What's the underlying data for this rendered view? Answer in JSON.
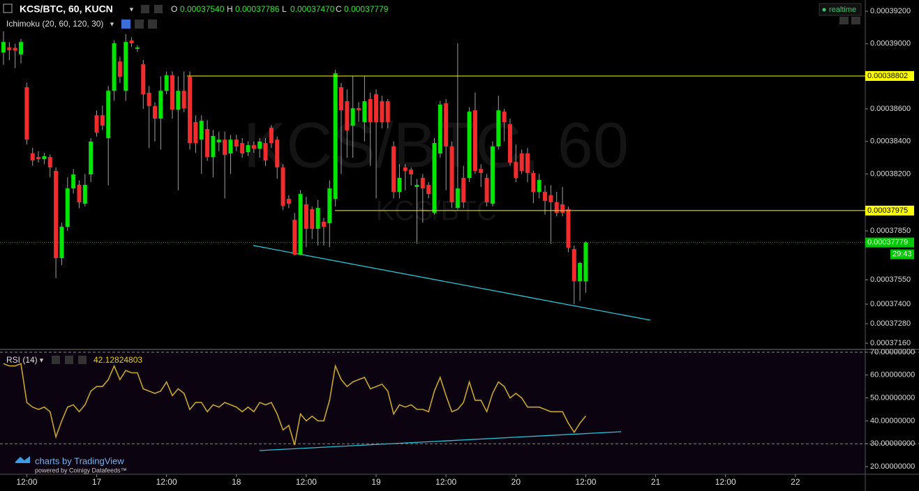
{
  "header": {
    "symbol": "KCS/BTC, 60, KUCN",
    "ohlc": [
      {
        "key": "O",
        "value": "0.00037540"
      },
      {
        "key": "H",
        "value": "0.00037786"
      },
      {
        "key": "L",
        "value": "0.00037470"
      },
      {
        "key": "C",
        "value": "0.00037779"
      }
    ],
    "indicator": "Ichimoku (20, 60, 120, 30)",
    "realtime": "realtime"
  },
  "watermark": {
    "title": "KCS/BTC, 60",
    "subtitle": "KCS/BTC"
  },
  "branding": {
    "title": "charts by TradingView",
    "subtitle": "powered by Coinigy Datafeeds™"
  },
  "chart_data": [
    {
      "type": "candlestick",
      "up_color": "#00e600",
      "down_color": "#f22c2c",
      "wick_color": "#a0a0a0",
      "open": [
        0.00038947,
        0.00038977,
        0.00038975,
        0.00038934,
        0.00038733,
        0.00038326,
        0.00038304,
        0.00038291,
        0.00038304,
        0.00038219,
        0.00037683,
        0.00037876,
        0.00038111,
        0.00038133,
        0.00038017,
        0.00038197,
        0.00038561,
        0.00038561,
        0.0003842,
        0.00038711,
        0.00038891,
        0.00038711,
        0.0003902,
        0.00038969,
        0.00038874,
        0.00038699,
        0.00038617,
        0.0003854,
        0.00038711,
        0.00038806,
        0.00038596,
        0.00038711,
        0.00038797,
        0.00038519,
        0.00038411,
        0.00038476,
        0.00038304,
        0.00038394,
        0.00038411,
        0.00038326,
        0.00038411,
        0.0003839,
        0.00038334,
        0.00038377,
        0.00038356,
        0.0003839,
        0.00038484,
        0.00038411,
        0.0003824,
        0.00038047,
        0.00037918,
        0.00037704,
        0.00038013,
        0.00037983,
        0.00037863,
        0.00037906,
        0.00037897,
        0.00038047,
        0.00038733,
        0.00038647,
        0.00038497,
        0.00038604,
        0.00038519,
        0.0003866,
        0.0003869,
        0.00038647,
        0.00038647,
        0.00038369,
        0.0003809,
        0.0003824,
        0.00038227,
        0.0003812,
        0.00038176,
        0.00038133,
        0.00037961,
        0.00038326,
        0.00038634,
        0.00038369,
        0.00037991,
        0.00038176,
        0.00038176,
        0.00038591,
        0.00038231,
        0.00038176,
        0.00038017,
        0.00038369,
        0.00038583,
        0.00038506,
        0.00038274,
        0.00038326,
        0.00038326,
        0.00038206,
        0.0003809,
        0.0003809,
        0.00038069,
        0.00038026,
        0.00038013,
        0.00037983,
        0.00037738,
        0.00037541,
        0.0003754
      ],
      "high": [
        0.00039076,
        0.0003901,
        0.00039,
        0.0003903,
        0.0003876,
        0.0003836,
        0.0003834,
        0.0003833,
        0.0003832,
        0.0003824,
        0.000379,
        0.0003818,
        0.0003823,
        0.0003816,
        0.000382,
        0.0003842,
        0.0003859,
        0.0003862,
        0.0003874,
        0.0003902,
        0.0003892,
        0.0003906,
        0.0003904,
        0.0003899,
        0.000389,
        0.0003874,
        0.0003864,
        0.000388,
        0.0003883,
        0.0003883,
        0.000388,
        0.0003883,
        0.0003883,
        0.0003856,
        0.0003856,
        0.0003853,
        0.0003847,
        0.0003846,
        0.0003846,
        0.0003844,
        0.0003844,
        0.0003842,
        0.000384,
        0.000384,
        0.0003842,
        0.0003842,
        0.000385,
        0.0003843,
        0.0003826,
        0.0003807,
        0.0003796,
        0.000381,
        0.0003806,
        0.00038,
        0.0003804,
        0.0003793,
        0.0003816,
        0.0003884,
        0.0003876,
        0.0003872,
        0.000388,
        0.0003864,
        0.000388,
        0.000387,
        0.0003872,
        0.0003868,
        0.0003866,
        0.000384,
        0.0003826,
        0.0003826,
        0.0003824,
        0.0003817,
        0.000382,
        0.0003815,
        0.0003842,
        0.0003865,
        0.0003866,
        0.000384,
        0.00039003,
        0.0003825,
        0.0003861,
        0.000387,
        0.0003826,
        0.000382,
        0.000384,
        0.0003868,
        0.000386,
        0.0003854,
        0.0003838,
        0.0003835,
        0.0003836,
        0.0003822,
        0.000382,
        0.0003813,
        0.0003813,
        0.0003809,
        0.0003812,
        0.00038,
        0.0003776,
        0.0003766,
        0.00037786
      ],
      "low": [
        0.0003887,
        0.000389,
        0.0003885,
        0.0003888,
        0.0003838,
        0.0003825,
        0.0003827,
        0.0003826,
        0.0003818,
        0.0003756,
        0.0003764,
        0.0003785,
        0.0003808,
        0.0003799,
        0.00038,
        0.0003815,
        0.0003843,
        0.0003847,
        0.0003813,
        0.0003865,
        0.0003876,
        0.0003865,
        0.0003898,
        0.0003895,
        0.000386,
        0.0003836,
        0.000384,
        0.0003835,
        0.0003869,
        0.0003854,
        0.000381,
        0.0003858,
        0.0003835,
        0.0003833,
        0.000382,
        0.0003828,
        0.0003818,
        0.0003834,
        0.0003805,
        0.000382,
        0.0003834,
        0.000383,
        0.0003831,
        0.0003833,
        0.000383,
        0.0003825,
        0.0003836,
        0.0003817,
        0.0003798,
        0.0003799,
        0.000377,
        0.000377,
        0.0003775,
        0.000378,
        0.0003776,
        0.0003776,
        0.0003775,
        0.00038,
        0.000382,
        0.000383,
        0.000383,
        0.0003852,
        0.000384,
        0.0003825,
        0.0003805,
        0.0003848,
        0.0003848,
        0.0003805,
        0.0003805,
        0.000381,
        0.0003813,
        0.0003777,
        0.000379,
        0.0003805,
        0.0003795,
        0.000383,
        0.000381,
        0.0003799,
        0.0003798,
        0.0003799,
        0.0003815,
        0.000382,
        0.0003812,
        0.00038,
        0.00038,
        0.0003835,
        0.000384,
        0.0003825,
        0.0003815,
        0.000382,
        0.0003815,
        0.0003802,
        0.0003805,
        0.0003795,
        0.0003777,
        0.0003794,
        0.0003794,
        0.0003772,
        0.000374,
        0.0003742,
        0.0003747
      ],
      "close": [
        0.00039011,
        0.0003896,
        0.00038958,
        0.00039011,
        0.00038411,
        0.00038283,
        0.00038291,
        0.00038309,
        0.0003824,
        0.00037683,
        0.00037876,
        0.00038111,
        0.00038197,
        0.00038026,
        0.00038133,
        0.00038399,
        0.00038454,
        0.00038497,
        0.00038711,
        0.00039003,
        0.00038797,
        0.00039011,
        0.00039003,
        0.00038977,
        0.0003869,
        0.00038617,
        0.0003854,
        0.00038711,
        0.00038806,
        0.00038596,
        0.00038711,
        0.00038604,
        0.0003839,
        0.0003839,
        0.00038527,
        0.00038304,
        0.00038433,
        0.00038411,
        0.00038317,
        0.00038411,
        0.00038369,
        0.00038326,
        0.00038377,
        0.00038356,
        0.00038399,
        0.00038283,
        0.0003839,
        0.0003824,
        0.00038004,
        0.00038017,
        0.00037704,
        0.00038077,
        0.00037863,
        0.00037863,
        0.00037991,
        0.00037876,
        0.00038111,
        0.00038819,
        0.00038591,
        0.00038467,
        0.00038604,
        0.00038591,
        0.00038647,
        0.00038519,
        0.00038519,
        0.00038519,
        0.00038519,
        0.0003809,
        0.00038176,
        0.00038219,
        0.00038197,
        0.00038133,
        0.00038111,
        0.00038077,
        0.0003839,
        0.00038626,
        0.00038369,
        0.00038026,
        0.00038111,
        0.00038026,
        0.00038583,
        0.00038219,
        0.00038206,
        0.00038026,
        0.00038369,
        0.00038591,
        0.00038519,
        0.0003827,
        0.00038176,
        0.00038219,
        0.00038206,
        0.0003809,
        0.00038163,
        0.00038034,
        0.00038026,
        0.00037961,
        0.00037961,
        0.00037747,
        0.00037541,
        0.00037653,
        0.00037779
      ],
      "xlim": [
        -0.6,
        148
      ],
      "xticks": [
        {
          "value": 4,
          "label": "12:00"
        },
        {
          "value": 16,
          "label": "17"
        },
        {
          "value": 28,
          "label": "12:00"
        },
        {
          "value": 40,
          "label": "18"
        },
        {
          "value": 52,
          "label": "12:00"
        },
        {
          "value": 64,
          "label": "19"
        },
        {
          "value": 76,
          "label": "12:00"
        },
        {
          "value": 88,
          "label": "20"
        },
        {
          "value": 100,
          "label": "12:00"
        },
        {
          "value": 112,
          "label": "21"
        },
        {
          "value": 124,
          "label": "12:00"
        },
        {
          "value": 136,
          "label": "22"
        }
      ],
      "ylim": [
        0.00037126,
        0.00039269
      ],
      "yticks": [
        {
          "value": 0.000392,
          "label": "0.00039200"
        },
        {
          "value": 0.00039,
          "label": "0.00039000"
        },
        {
          "value": 0.000386,
          "label": "0.00038600"
        },
        {
          "value": 0.000384,
          "label": "0.00038400"
        },
        {
          "value": 0.000382,
          "label": "0.00038200"
        },
        {
          "value": 0.0003785,
          "label": "0.00037850"
        },
        {
          "value": 0.0003755,
          "label": "0.00037550"
        },
        {
          "value": 0.000374,
          "label": "0.00037400"
        },
        {
          "value": 0.0003728,
          "label": "0.00037280"
        },
        {
          "value": 0.0003716,
          "label": "0.00037160"
        }
      ],
      "hlines": [
        {
          "value": 0.00038802,
          "label": "0.00038802"
        },
        {
          "value": 0.00037975,
          "label": "0.00037975"
        }
      ],
      "hline_color": "#ffff00",
      "last_price_label": "0.00037779",
      "last_price_color": "#00c800",
      "countdown": "29:43"
    },
    {
      "type": "line",
      "title": "RSI (14)",
      "color": "#c8a628",
      "values": [
        65,
        64,
        64,
        65,
        48,
        46,
        45,
        46,
        44,
        33,
        40,
        46,
        47,
        44,
        47,
        53,
        55,
        55,
        58,
        64,
        58,
        62,
        61,
        61,
        54,
        53,
        52,
        53,
        57,
        51,
        54,
        52,
        45,
        48,
        48,
        44,
        47,
        46,
        48,
        47,
        46,
        44,
        46,
        44,
        48,
        47,
        48,
        43,
        36,
        38,
        29.4,
        43,
        40,
        42,
        40,
        40,
        49,
        64,
        58,
        55,
        57,
        58,
        59,
        54,
        55,
        56,
        53,
        43,
        47,
        46,
        47,
        45,
        45,
        44,
        53,
        59,
        51,
        44,
        45,
        48,
        57,
        49,
        49,
        44,
        52,
        57,
        55,
        50,
        52,
        50,
        46,
        46,
        46,
        45,
        44,
        44,
        44,
        39,
        35,
        39,
        42.12824803
      ],
      "ylim": [
        16.65,
        70.6
      ],
      "yticks": [
        {
          "value": 70,
          "label": "70.00000000"
        },
        {
          "value": 60,
          "label": "60.00000000"
        },
        {
          "value": 50,
          "label": "50.00000000"
        },
        {
          "value": 40,
          "label": "40.00000000"
        },
        {
          "value": 30,
          "label": "30.00000000"
        },
        {
          "value": 20,
          "label": "20.00000000"
        }
      ],
      "bands": [
        70,
        30
      ]
    }
  ]
}
